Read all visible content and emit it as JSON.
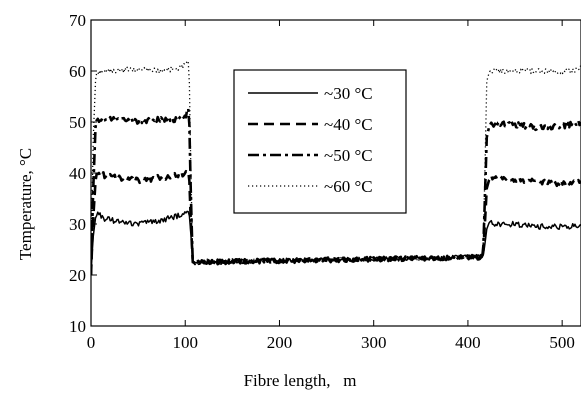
{
  "chart_data": {
    "type": "line",
    "title": "",
    "xlabel": "Fibre length,   m",
    "ylabel": "Temperature, °C",
    "xlim": [
      0,
      520
    ],
    "ylim": [
      10,
      70
    ],
    "xticks": [
      0,
      100,
      200,
      300,
      400,
      500
    ],
    "yticks": [
      10,
      20,
      30,
      40,
      50,
      60,
      70
    ],
    "xtick_labels": [
      "0",
      "100",
      "200",
      "300",
      "400",
      "500"
    ],
    "ytick_labels": [
      "10",
      "20",
      "30",
      "40",
      "50",
      "60",
      "70"
    ],
    "grid": false,
    "legend_position": "top-center",
    "baseline_section_value": 23,
    "series": [
      {
        "name": "~30 °C",
        "line_style": "solid",
        "x": [
          0,
          2,
          5,
          8,
          15,
          30,
          50,
          70,
          90,
          100,
          104,
          106,
          108,
          110,
          416,
          418,
          420,
          423,
          430,
          450,
          470,
          490,
          510,
          520
        ],
        "y": [
          20,
          27,
          31.5,
          32,
          31,
          30.5,
          30,
          30.5,
          31.5,
          32,
          32.5,
          28,
          22.5,
          22.5,
          23.5,
          26,
          29,
          30.5,
          30,
          30,
          29.5,
          29.5,
          29.5,
          30
        ]
      },
      {
        "name": "~40 °C",
        "line_style": "dashed",
        "x": [
          0,
          2,
          5,
          8,
          15,
          30,
          50,
          70,
          90,
          100,
          104,
          106,
          108,
          110,
          416,
          418,
          420,
          423,
          430,
          450,
          470,
          490,
          510,
          520
        ],
        "y": [
          20,
          30,
          39,
          40,
          39.5,
          39,
          38.5,
          39,
          39.5,
          40,
          40.5,
          30,
          22.5,
          22.5,
          23.5,
          30,
          37,
          39,
          39,
          38.5,
          38.5,
          38,
          38,
          38.5
        ]
      },
      {
        "name": "~50 °C",
        "line_style": "dash-dot",
        "x": [
          0,
          2,
          5,
          8,
          15,
          30,
          50,
          70,
          90,
          100,
          104,
          106,
          108,
          110,
          416,
          418,
          420,
          423,
          430,
          450,
          470,
          490,
          510,
          520
        ],
        "y": [
          20,
          35,
          50,
          50.5,
          50.5,
          50.5,
          50,
          50.5,
          50.5,
          51,
          53,
          35,
          22.5,
          22.5,
          23.5,
          35,
          47,
          49.5,
          49.5,
          49.5,
          49,
          49,
          49.5,
          50
        ]
      },
      {
        "name": "~60 °C",
        "line_style": "dotted",
        "x": [
          0,
          2,
          5,
          8,
          15,
          30,
          50,
          70,
          90,
          100,
          104,
          106,
          108,
          110,
          416,
          418,
          420,
          423,
          430,
          450,
          470,
          490,
          510,
          520
        ],
        "y": [
          20,
          45,
          59,
          59.5,
          60,
          60,
          60.5,
          60,
          60.5,
          61,
          62,
          40,
          22.5,
          22.5,
          23.5,
          40,
          58,
          60,
          60,
          60,
          60,
          60,
          60,
          60.5
        ]
      }
    ]
  }
}
